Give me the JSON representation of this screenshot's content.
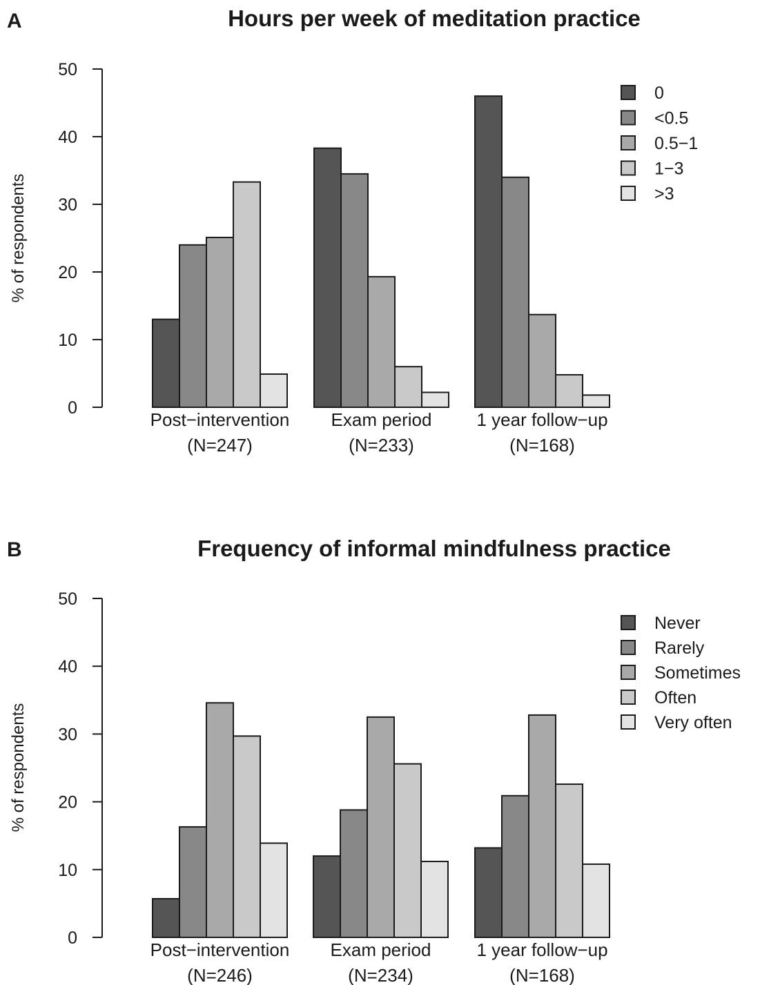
{
  "chart_data": [
    {
      "type": "bar",
      "panel": "A",
      "title": "Hours per week of meditation practice",
      "xlabel": "",
      "ylabel": "% of respondents",
      "ylim": [
        0,
        50
      ],
      "yticks": [
        0,
        10,
        20,
        30,
        40,
        50
      ],
      "grid": false,
      "legend_position": "top-right",
      "categories": [
        {
          "label": "Post−intervention",
          "sublabel": "(N=247)"
        },
        {
          "label": "Exam period",
          "sublabel": "(N=233)"
        },
        {
          "label": "1 year follow−up",
          "sublabel": "(N=168)"
        }
      ],
      "series": [
        {
          "name": "0",
          "color": "#555555",
          "values": [
            13,
            38.3,
            46
          ]
        },
        {
          "name": "<0.5",
          "color": "#888888",
          "values": [
            24,
            34.5,
            34
          ]
        },
        {
          "name": "0.5−1",
          "color": "#a9a9a9",
          "values": [
            25.1,
            19.3,
            13.7
          ]
        },
        {
          "name": "1−3",
          "color": "#c9c9c9",
          "values": [
            33.3,
            6,
            4.8
          ]
        },
        {
          "name": ">3",
          "color": "#e3e3e3",
          "values": [
            4.9,
            2.2,
            1.8
          ]
        }
      ]
    },
    {
      "type": "bar",
      "panel": "B",
      "title": "Frequency of informal mindfulness practice",
      "xlabel": "",
      "ylabel": "% of respondents",
      "ylim": [
        0,
        50
      ],
      "yticks": [
        0,
        10,
        20,
        30,
        40,
        50
      ],
      "grid": false,
      "legend_position": "top-right",
      "categories": [
        {
          "label": "Post−intervention",
          "sublabel": "(N=246)"
        },
        {
          "label": "Exam period",
          "sublabel": "(N=234)"
        },
        {
          "label": "1 year follow−up",
          "sublabel": "(N=168)"
        }
      ],
      "series": [
        {
          "name": "Never",
          "color": "#555555",
          "values": [
            5.7,
            12,
            13.2
          ]
        },
        {
          "name": "Rarely",
          "color": "#888888",
          "values": [
            16.3,
            18.8,
            20.9
          ]
        },
        {
          "name": "Sometimes",
          "color": "#a9a9a9",
          "values": [
            34.6,
            32.5,
            32.8
          ]
        },
        {
          "name": "Often",
          "color": "#c9c9c9",
          "values": [
            29.7,
            25.6,
            22.6
          ]
        },
        {
          "name": "Very often",
          "color": "#e3e3e3",
          "values": [
            13.9,
            11.2,
            10.8
          ]
        }
      ]
    }
  ]
}
